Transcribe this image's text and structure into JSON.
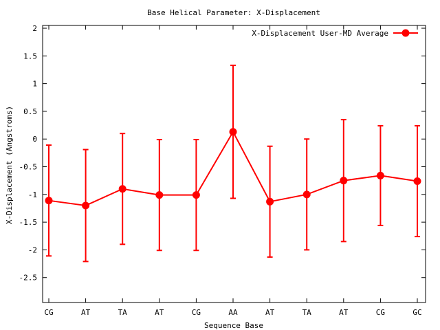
{
  "chart_data": {
    "type": "line",
    "title": "Base  Helical Parameter: X-Displacement",
    "xlabel": "Sequence Base",
    "ylabel": "X-Displacement (Angstroms)",
    "categories": [
      "CG",
      "AT",
      "TA",
      "AT",
      "CG",
      "AA",
      "AT",
      "TA",
      "AT",
      "CG",
      "GC"
    ],
    "ylim": [
      -2.95,
      2.05
    ],
    "yticks": [
      2,
      1.5,
      1,
      0.5,
      0,
      -0.5,
      -1,
      -1.5,
      -2,
      -2.5
    ],
    "ytick_labels": [
      "2",
      "1.5",
      "1",
      "0.5",
      "0",
      "-0.5",
      "-1",
      "-1.5",
      "-2",
      "-2.5"
    ],
    "legend_position": "top-right",
    "grid": false,
    "series": [
      {
        "name": "X-Displacement User-MD Average",
        "color": "#ff0000",
        "values": [
          -1.11,
          -1.2,
          -0.9,
          -1.01,
          -1.01,
          0.13,
          -1.13,
          -1.0,
          -0.75,
          -0.66,
          -0.76
        ],
        "errors": [
          1.0,
          1.01,
          1.0,
          1.0,
          1.0,
          1.2,
          1.0,
          1.0,
          1.1,
          0.9,
          1.0
        ]
      }
    ]
  }
}
